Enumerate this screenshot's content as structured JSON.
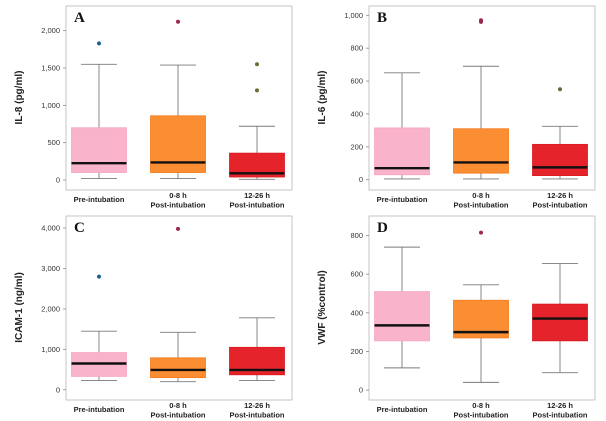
{
  "chart_data": [
    {
      "type": "box",
      "panel_letter": "A",
      "ylabel": "IL-8 (pg/ml)",
      "categories": [
        "Pre-intubation",
        "0-8 h\nPost-intubation",
        "12-26 h\nPost-intubation"
      ],
      "yticks": [
        0,
        500,
        1000,
        1500,
        2000
      ],
      "ytick_labels": [
        "0",
        "500",
        "1,000",
        "1,500",
        "2,000"
      ],
      "ylim": [
        -40,
        2250
      ],
      "boxes": [
        {
          "whisker_low": 20,
          "q1": 100,
          "median": 225,
          "q3": 700,
          "whisker_high": 1550,
          "outliers": [
            1830
          ]
        },
        {
          "whisker_low": 20,
          "q1": 100,
          "median": 235,
          "q3": 860,
          "whisker_high": 1540,
          "outliers": [
            2120
          ]
        },
        {
          "whisker_low": 10,
          "q1": 40,
          "median": 90,
          "q3": 360,
          "whisker_high": 720,
          "outliers": [
            1200,
            1550
          ]
        }
      ]
    },
    {
      "type": "box",
      "panel_letter": "B",
      "ylabel": "IL-6 (pg/ml)",
      "categories": [
        "Pre-intubation",
        "0-8 h\nPost-intubation",
        "12-26 h\nPost-intubation"
      ],
      "yticks": [
        0,
        200,
        400,
        600,
        800,
        1000
      ],
      "ytick_labels": [
        "0",
        "200",
        "400",
        "600",
        "800",
        "1,000"
      ],
      "ylim": [
        -20,
        1020
      ],
      "boxes": [
        {
          "whisker_low": 5,
          "q1": 30,
          "median": 70,
          "q3": 315,
          "whisker_high": 650,
          "outliers": []
        },
        {
          "whisker_low": 5,
          "q1": 40,
          "median": 105,
          "q3": 310,
          "whisker_high": 690,
          "outliers": [
            960,
            970
          ]
        },
        {
          "whisker_low": 5,
          "q1": 25,
          "median": 75,
          "q3": 215,
          "whisker_high": 325,
          "outliers": [
            550
          ]
        }
      ]
    },
    {
      "type": "box",
      "panel_letter": "C",
      "ylabel": "ICAM-1 (ng/ml)",
      "categories": [
        "Pre-intubation",
        "0-8 h\nPost-intubation",
        "12-26 h\nPost-intubation"
      ],
      "yticks": [
        0,
        1000,
        2000,
        3000,
        4000
      ],
      "ytick_labels": [
        "0",
        "1,000",
        "2,000",
        "3,000",
        "4,000"
      ],
      "ylim": [
        -80,
        4150
      ],
      "boxes": [
        {
          "whisker_low": 230,
          "q1": 330,
          "median": 650,
          "q3": 920,
          "whisker_high": 1450,
          "outliers": [
            2800
          ]
        },
        {
          "whisker_low": 200,
          "q1": 300,
          "median": 490,
          "q3": 790,
          "whisker_high": 1420,
          "outliers": [
            3980
          ]
        },
        {
          "whisker_low": 230,
          "q1": 370,
          "median": 490,
          "q3": 1050,
          "whisker_high": 1780,
          "outliers": []
        }
      ]
    },
    {
      "type": "box",
      "panel_letter": "D",
      "ylabel": "VWF (%control)",
      "categories": [
        "Pre-intubation",
        "0-8 h\nPost-intubation",
        "12-26 h\nPost-intubation"
      ],
      "yticks": [
        0,
        200,
        400,
        600,
        800
      ],
      "ytick_labels": [
        "0",
        "200",
        "400",
        "600",
        "800"
      ],
      "ylim": [
        -15,
        870
      ],
      "boxes": [
        {
          "whisker_low": 115,
          "q1": 255,
          "median": 335,
          "q3": 510,
          "whisker_high": 740,
          "outliers": []
        },
        {
          "whisker_low": 40,
          "q1": 270,
          "median": 300,
          "q3": 465,
          "whisker_high": 545,
          "outliers": [
            815
          ]
        },
        {
          "whisker_low": 90,
          "q1": 255,
          "median": 370,
          "q3": 445,
          "whisker_high": 655,
          "outliers": []
        }
      ]
    }
  ],
  "colors": {
    "box_fills": [
      "#f9b3cb",
      "#fb8d33",
      "#e4242a"
    ],
    "box_strokes": [
      "#f7a6c2",
      "#f47b1c",
      "#d81c22"
    ],
    "outlier_colors_by_panel": [
      [
        "#1c5f8a",
        "#9b2a4a",
        "#6e6b36"
      ],
      [
        "#7a2a3a",
        "#9b2a4a",
        "#5d6e3b"
      ],
      [
        "#1c5f8a",
        "#9b2a4a",
        "#6e6b36"
      ],
      [
        "#1c5f8a",
        "#9b2a4a",
        "#6e6b36"
      ]
    ]
  }
}
